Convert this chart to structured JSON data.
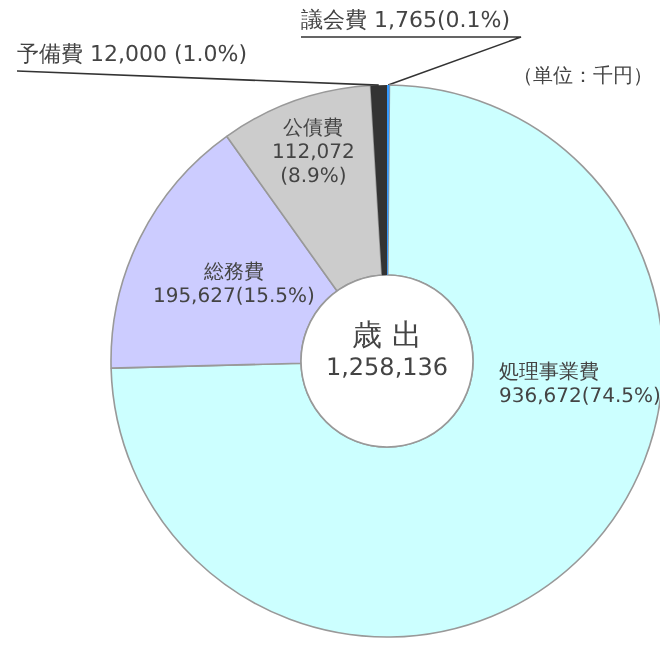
{
  "chart_data": {
    "type": "donut",
    "title": "歳 出",
    "subtitle": "1,258,136",
    "annotations": [
      "（単位：千円）"
    ],
    "categories": [
      "議会費",
      "処理事業費",
      "総務費",
      "公債費",
      "予備費"
    ],
    "values": [
      1765,
      936672,
      195627,
      112072,
      12000
    ],
    "value_labels": [
      "1,765(0.1%)",
      "936,672(74.5%)",
      "195,627(15.5%)",
      "112,072\n(8.9%)",
      "12,000 (1.0%)"
    ],
    "colors": [
      "#3399ff",
      "#ccffff",
      "#ccccff",
      "#cccccc",
      "#333333"
    ]
  }
}
